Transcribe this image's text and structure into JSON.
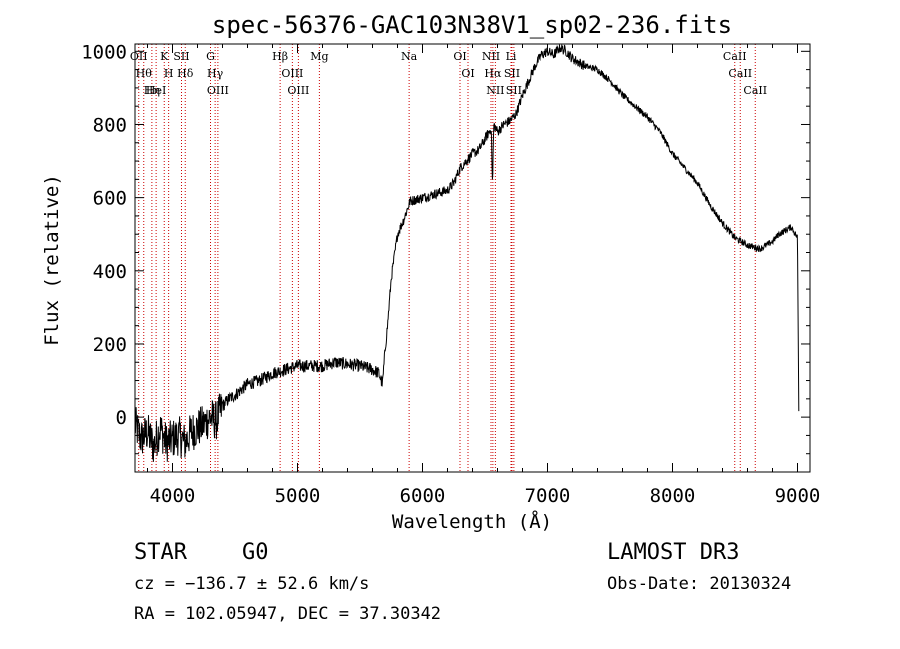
{
  "chart_data": {
    "type": "line",
    "title": "spec-56376-GAC103N38V1_sp02-236.fits",
    "xlabel": "Wavelength (Å)",
    "ylabel": "Flux (relative)",
    "xlim": [
      3700,
      9100
    ],
    "ylim": [
      -150,
      1020
    ],
    "xticks": [
      4000,
      5000,
      6000,
      7000,
      8000,
      9000
    ],
    "yticks": [
      0,
      200,
      400,
      600,
      800,
      1000
    ],
    "series": [
      {
        "name": "flux",
        "x": [
          3700,
          3750,
          3800,
          3850,
          3900,
          3950,
          4000,
          4050,
          4100,
          4150,
          4200,
          4250,
          4300,
          4350,
          4400,
          4450,
          4500,
          4600,
          4700,
          4800,
          4900,
          5000,
          5100,
          5200,
          5300,
          5400,
          5500,
          5600,
          5650,
          5680,
          5700,
          5720,
          5750,
          5800,
          5850,
          5900,
          6000,
          6100,
          6200,
          6250,
          6300,
          6350,
          6400,
          6450,
          6500,
          6550,
          6560,
          6570,
          6600,
          6650,
          6700,
          6750,
          6800,
          6850,
          6900,
          6950,
          7000,
          7050,
          7100,
          7150,
          7200,
          7300,
          7400,
          7500,
          7600,
          7700,
          7800,
          7900,
          8000,
          8100,
          8200,
          8300,
          8400,
          8450,
          8500,
          8550,
          8600,
          8650,
          8700,
          8800,
          8850,
          8900,
          8950,
          9000,
          9010
        ],
        "y": [
          -20,
          -60,
          -40,
          -80,
          -30,
          -70,
          -60,
          -50,
          -70,
          -40,
          -30,
          -20,
          0,
          -10,
          30,
          50,
          60,
          90,
          100,
          120,
          130,
          140,
          140,
          140,
          150,
          145,
          140,
          130,
          120,
          90,
          180,
          250,
          380,
          500,
          540,
          590,
          600,
          610,
          620,
          640,
          680,
          700,
          720,
          730,
          760,
          790,
          630,
          800,
          780,
          800,
          810,
          830,
          880,
          920,
          960,
          990,
          1000,
          990,
          1010,
          1000,
          980,
          960,
          950,
          920,
          880,
          850,
          820,
          780,
          720,
          680,
          640,
          580,
          530,
          510,
          490,
          480,
          470,
          465,
          460,
          480,
          500,
          510,
          520,
          490,
          20
        ]
      }
    ],
    "lines": [
      {
        "x": 3730,
        "label": "OII"
      },
      {
        "x": 3770,
        "label": "Hθ"
      },
      {
        "x": 3835,
        "label": "Hη"
      },
      {
        "x": 3869,
        "label": "HeI"
      },
      {
        "x": 3934,
        "label": "K"
      },
      {
        "x": 3969,
        "label": "H"
      },
      {
        "x": 4072,
        "label": "SII"
      },
      {
        "x": 4102,
        "label": "Hδ"
      },
      {
        "x": 4304,
        "label": "G"
      },
      {
        "x": 4341,
        "label": "Hγ"
      },
      {
        "x": 4363,
        "label": "OIII"
      },
      {
        "x": 4861,
        "label": "Hβ"
      },
      {
        "x": 4959,
        "label": "OIII"
      },
      {
        "x": 5007,
        "label": "OIII"
      },
      {
        "x": 5175,
        "label": "Mg"
      },
      {
        "x": 5893,
        "label": "Na"
      },
      {
        "x": 6300,
        "label": "OI"
      },
      {
        "x": 6364,
        "label": "OI"
      },
      {
        "x": 6548,
        "label": "NII"
      },
      {
        "x": 6563,
        "label": "Hα"
      },
      {
        "x": 6583,
        "label": "NII"
      },
      {
        "x": 6708,
        "label": "Li"
      },
      {
        "x": 6716,
        "label": "SII"
      },
      {
        "x": 6731,
        "label": "SII"
      },
      {
        "x": 8498,
        "label": "CaII"
      },
      {
        "x": 8542,
        "label": "CaII"
      },
      {
        "x": 8662,
        "label": "CaII"
      }
    ]
  },
  "info": {
    "object_class": "STAR",
    "subclass": "G0",
    "survey": "LAMOST DR3",
    "cz": "cz = −136.7 ± 52.6 km/s",
    "obs_date": "Obs-Date: 20130324",
    "coords": "RA = 102.05947, DEC =  37.30342"
  },
  "colors": {
    "line_marker": "#cc0000",
    "spectrum": "#000000"
  }
}
